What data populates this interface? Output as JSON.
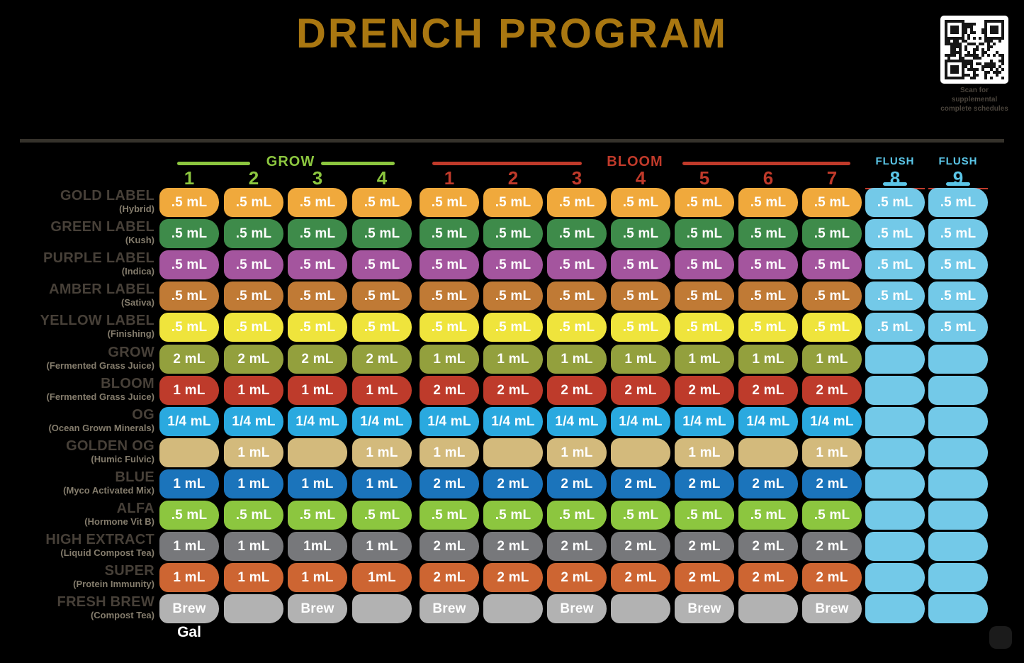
{
  "title": "DRENCH PROGRAM",
  "qr": {
    "caption_lines": [
      "Scan for",
      "supplemental",
      "complete schedules"
    ]
  },
  "footer": {
    "unit_note": "Gal"
  },
  "colors": {
    "background": "#000000",
    "title": "#A97711",
    "grow": "#8CC63F",
    "bloom": "#C03A2A",
    "flush": "#5BC6E8",
    "flush_cell": "#73C9E8",
    "label_text": "#474038",
    "label_subtext": "#847C6C"
  },
  "chart_data": {
    "type": "table",
    "title": "DRENCH PROGRAM",
    "phases": [
      {
        "label": "GROW",
        "color": "#8CC63F",
        "weeks": [
          "1",
          "2",
          "3",
          "4"
        ]
      },
      {
        "label": "BLOOM",
        "color": "#C03A2A",
        "weeks": [
          "1",
          "2",
          "3",
          "4",
          "5",
          "6",
          "7"
        ]
      },
      {
        "label": "FLUSH",
        "color": "#5BC6E8",
        "weeks": [
          "8"
        ]
      },
      {
        "label": "FLUSH",
        "color": "#5BC6E8",
        "weeks": [
          "9"
        ]
      }
    ],
    "rows": [
      {
        "name": "GOLD LABEL",
        "subtitle": "(Hybrid)",
        "color": "#F0A93C",
        "values": [
          ".5 mL",
          ".5 mL",
          ".5 mL",
          ".5 mL",
          ".5 mL",
          ".5 mL",
          ".5 mL",
          ".5 mL",
          ".5 mL",
          ".5 mL",
          ".5 mL",
          ".5 mL",
          ".5 mL"
        ]
      },
      {
        "name": "GREEN LABEL",
        "subtitle": "(Kush)",
        "color": "#3E8B4A",
        "values": [
          ".5 mL",
          ".5 mL",
          ".5 mL",
          ".5 mL",
          ".5 mL",
          ".5 mL",
          ".5 mL",
          ".5 mL",
          ".5 mL",
          ".5 mL",
          ".5 mL",
          ".5 mL",
          ".5 mL"
        ]
      },
      {
        "name": "PURPLE LABEL",
        "subtitle": "(Indica)",
        "color": "#A4559E",
        "values": [
          ".5 mL",
          ".5 mL",
          ".5 mL",
          ".5 mL",
          ".5 mL",
          ".5 mL",
          ".5 mL",
          ".5 mL",
          ".5 mL",
          ".5 mL",
          ".5 mL",
          ".5 mL",
          ".5 mL"
        ]
      },
      {
        "name": "AMBER LABEL",
        "subtitle": "(Sativa)",
        "color": "#C07A35",
        "values": [
          ".5 mL",
          ".5 mL",
          ".5 mL",
          ".5 mL",
          ".5 mL",
          ".5 mL",
          ".5 mL",
          ".5 mL",
          ".5 mL",
          ".5 mL",
          ".5 mL",
          ".5 mL",
          ".5 mL"
        ]
      },
      {
        "name": "YELLOW LABEL",
        "subtitle": "(Finishing)",
        "color": "#EFE43C",
        "values": [
          ".5 mL",
          ".5 mL",
          ".5 mL",
          ".5 mL",
          ".5 mL",
          ".5 mL",
          ".5 mL",
          ".5 mL",
          ".5 mL",
          ".5 mL",
          ".5 mL",
          ".5 mL",
          ".5 mL"
        ]
      },
      {
        "name": "GROW",
        "subtitle": "(Fermented Grass Juice)",
        "color": "#93A03D",
        "values": [
          "2 mL",
          "2 mL",
          "2 mL",
          "2 mL",
          "1 mL",
          "1 mL",
          "1 mL",
          "1 mL",
          "1 mL",
          "1 mL",
          "1 mL",
          "",
          ""
        ]
      },
      {
        "name": "BLOOM",
        "subtitle": "(Fermented Grass Juice)",
        "color": "#BE3B2B",
        "values": [
          "1 mL",
          "1 mL",
          "1 mL",
          "1 mL",
          "2 mL",
          "2 mL",
          "2 mL",
          "2 mL",
          "2 mL",
          "2 mL",
          "2 mL",
          "",
          ""
        ]
      },
      {
        "name": "OG",
        "subtitle": "(Ocean Grown Minerals)",
        "color": "#2AA9DF",
        "values": [
          "1/4 mL",
          "1/4 mL",
          "1/4 mL",
          "1/4 mL",
          "1/4 mL",
          "1/4 mL",
          "1/4 mL",
          "1/4 mL",
          "1/4 mL",
          "1/4 mL",
          "1/4 mL",
          "",
          ""
        ]
      },
      {
        "name": "GOLDEN OG",
        "subtitle": "(Humic Fulvic)",
        "color": "#D3BA7C",
        "values": [
          "",
          "1 mL",
          "",
          "1 mL",
          "1 mL",
          "",
          "1 mL",
          "",
          "1 mL",
          "",
          "1 mL",
          "",
          ""
        ]
      },
      {
        "name": "BLUE",
        "subtitle": "(Myco Activated Mix)",
        "color": "#1B74BB",
        "values": [
          "1 mL",
          "1 mL",
          "1 mL",
          "1 mL",
          "2 mL",
          "2 mL",
          "2 mL",
          "2 mL",
          "2 mL",
          "2 mL",
          "2 mL",
          "",
          ""
        ]
      },
      {
        "name": "ALFA",
        "subtitle": "(Hormone Vit B)",
        "color": "#8CC63F",
        "values": [
          ".5 mL",
          ".5 mL",
          ".5 mL",
          ".5 mL",
          ".5 mL",
          ".5 mL",
          ".5 mL",
          ".5 mL",
          ".5 mL",
          ".5 mL",
          ".5 mL",
          "",
          ""
        ]
      },
      {
        "name": "HIGH EXTRACT",
        "subtitle": "(Liquid Compost Tea)",
        "color": "#77787B",
        "values": [
          "1 mL",
          "1 mL",
          "1mL",
          "1 mL",
          "2 mL",
          "2 mL",
          "2 mL",
          "2 mL",
          "2 mL",
          "2 mL",
          "2 mL",
          "",
          ""
        ]
      },
      {
        "name": "SUPER",
        "subtitle": "(Protein Immunity)",
        "color": "#CD6532",
        "values": [
          "1 mL",
          "1 mL",
          "1 mL",
          "1mL",
          "2 mL",
          "2 mL",
          "2 mL",
          "2 mL",
          "2 mL",
          "2 mL",
          "2 mL",
          "",
          ""
        ]
      },
      {
        "name": "FRESH BREW",
        "subtitle": "(Compost Tea)",
        "color": "#B2B2B2",
        "values": [
          "Brew",
          "",
          "Brew",
          "",
          "Brew",
          "",
          "Brew",
          "",
          "Brew",
          "",
          "Brew",
          "",
          ""
        ]
      }
    ]
  }
}
